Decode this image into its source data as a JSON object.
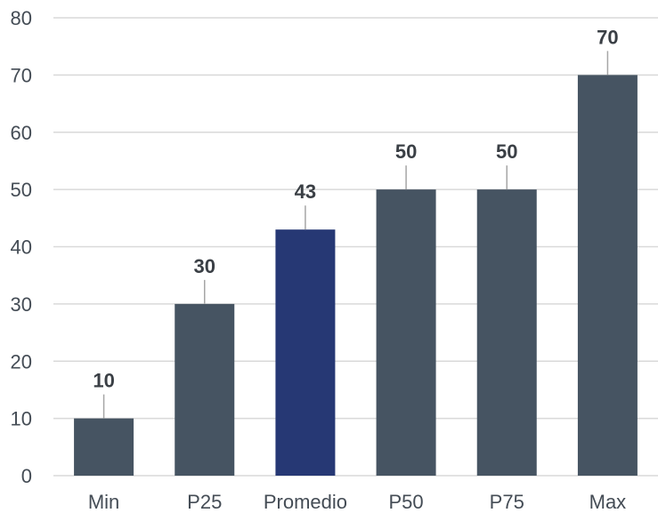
{
  "chart_data": {
    "type": "bar",
    "title": "",
    "xlabel": "",
    "ylabel": "",
    "categories": [
      "Min",
      "P25",
      "Promedio",
      "P50",
      "P75",
      "Max"
    ],
    "values": [
      10,
      30,
      43,
      50,
      50,
      70
    ],
    "value_labels": [
      "10",
      "30",
      "43",
      "50",
      "50",
      "70"
    ],
    "ylim": [
      0,
      80
    ],
    "yticks": [
      0,
      10,
      20,
      30,
      40,
      50,
      60,
      70,
      80
    ],
    "grid": true,
    "legend": "none",
    "colors": {
      "bar": "#465462",
      "highlight": "#263874",
      "grid": "#d9d9d9",
      "leader_line": "#a6a6a6"
    },
    "highlight_category": "Promedio"
  }
}
